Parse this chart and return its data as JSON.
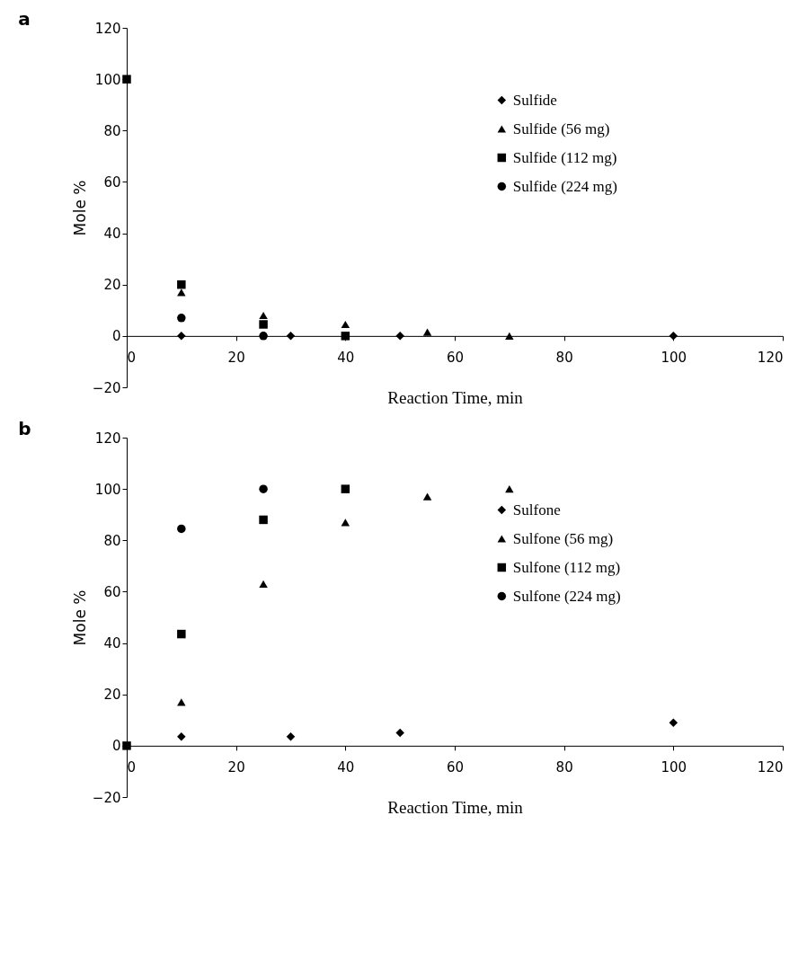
{
  "chart_data": [
    {
      "type": "scatter",
      "title": "a",
      "xlabel": "Reaction Time, min",
      "ylabel": "Mole %",
      "xlim": [
        0,
        120
      ],
      "xticks": [
        0,
        20,
        40,
        60,
        80,
        100,
        120
      ],
      "ylim": [
        -20,
        120
      ],
      "yticks": [
        -20,
        0,
        20,
        40,
        60,
        80,
        100,
        120
      ],
      "legend": "right",
      "grid": false,
      "series": [
        {
          "name": "Sulfide",
          "color": "#000000",
          "marker": "diamond",
          "x": [
            10,
            30,
            50,
            100
          ],
          "values": [
            0,
            0,
            0,
            0
          ]
        },
        {
          "name": "Sulfide (56 mg)",
          "color": "#000000",
          "marker": "triangle",
          "x": [
            10,
            25,
            40,
            55,
            70
          ],
          "values": [
            17,
            8,
            4.5,
            1.5,
            0
          ]
        },
        {
          "name": "Sulfide (112 mg)",
          "color": "#000000",
          "marker": "square",
          "x": [
            0,
            10,
            25,
            40
          ],
          "values": [
            100,
            20,
            4.5,
            0
          ]
        },
        {
          "name": "Sulfide (224 mg)",
          "color": "#000000",
          "marker": "circle",
          "x": [
            10,
            25
          ],
          "values": [
            7,
            0
          ]
        }
      ]
    },
    {
      "type": "scatter",
      "title": "b",
      "xlabel": "Reaction Time, min",
      "ylabel": "Mole %",
      "xlim": [
        0,
        120
      ],
      "xticks": [
        0,
        20,
        40,
        60,
        80,
        100,
        120
      ],
      "ylim": [
        -20,
        120
      ],
      "yticks": [
        -20,
        0,
        20,
        40,
        60,
        80,
        100,
        120
      ],
      "legend": "right",
      "grid": false,
      "series": [
        {
          "name": "Sulfone",
          "color": "#000000",
          "marker": "diamond",
          "x": [
            10,
            30,
            50,
            100
          ],
          "values": [
            3.5,
            3.5,
            5,
            9
          ]
        },
        {
          "name": "Sulfone (56 mg)",
          "color": "#000000",
          "marker": "triangle",
          "x": [
            10,
            25,
            40,
            55,
            70
          ],
          "values": [
            17,
            63,
            87,
            97,
            100
          ]
        },
        {
          "name": "Sulfone (112 mg)",
          "color": "#000000",
          "marker": "square",
          "x": [
            0,
            10,
            25,
            40
          ],
          "values": [
            0,
            43.5,
            88,
            100
          ]
        },
        {
          "name": "Sulfone (224 mg)",
          "color": "#000000",
          "marker": "circle",
          "x": [
            10,
            25
          ],
          "values": [
            84.5,
            100
          ]
        }
      ]
    }
  ]
}
